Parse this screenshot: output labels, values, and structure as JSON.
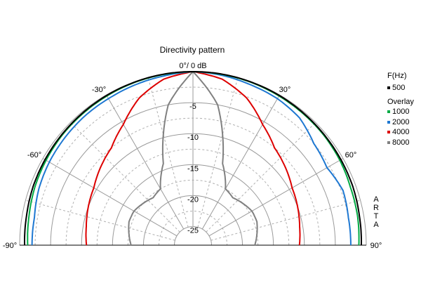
{
  "chart_data": {
    "type": "polar",
    "title": "Directivity pattern",
    "axis": {
      "radial_label_top": "0°/ 0 dB",
      "radial_ticks": [
        -5,
        -10,
        -15,
        -20,
        -25
      ],
      "radial_range_db": [
        -28,
        0
      ],
      "angle_labels": [
        "-90°",
        "-60°",
        "-30°",
        "30°",
        "60°",
        "90°"
      ],
      "angle_range_deg": [
        -90,
        90
      ],
      "angle_step_deg": 15,
      "grid": true
    },
    "legend": {
      "placement": "right",
      "header": "F(Hz)",
      "overlay_label": "Overlay",
      "items": [
        {
          "label": "500",
          "color": "#000000"
        },
        {
          "label": "1000",
          "color": "#00aa44"
        },
        {
          "label": "2000",
          "color": "#1e78d2"
        },
        {
          "label": "4000",
          "color": "#dd0000"
        },
        {
          "label": "8000",
          "color": "#808080"
        }
      ]
    },
    "watermark": "ARTA",
    "angles_deg": [
      -90,
      -80,
      -70,
      -60,
      -50,
      -40,
      -30,
      -20,
      -10,
      0,
      10,
      20,
      30,
      40,
      50,
      60,
      70,
      80,
      90
    ],
    "series": [
      {
        "name": "500",
        "color": "#000000",
        "values": [
          -0.8,
          -0.7,
          -0.5,
          -0.4,
          -0.3,
          -0.2,
          -0.1,
          -0.05,
          0,
          0,
          0,
          -0.05,
          -0.1,
          -0.2,
          -0.3,
          -0.4,
          -0.5,
          -0.7,
          -0.8
        ]
      },
      {
        "name": "1000",
        "color": "#00aa44",
        "values": [
          -1.3,
          -1.1,
          -0.8,
          -0.6,
          -0.4,
          -0.3,
          -0.2,
          -0.1,
          -0.05,
          0,
          -0.05,
          -0.1,
          -0.2,
          -0.3,
          -0.4,
          -0.6,
          -0.9,
          -1.0,
          -1.2
        ]
      },
      {
        "name": "2000",
        "color": "#1e78d2",
        "values": [
          -2.0,
          -2.0,
          -1.5,
          -1.2,
          -1.0,
          -0.8,
          -0.7,
          -0.5,
          -0.3,
          0,
          -0.2,
          -0.5,
          -0.7,
          -1.2,
          -2.5,
          -3.0,
          -2.2,
          -2.5,
          -2.5
        ]
      },
      {
        "name": "4000",
        "color": "#dd0000",
        "values": [
          -10.8,
          -10.5,
          -10.0,
          -9.5,
          -8.5,
          -7.5,
          -5.5,
          -2.7,
          -0.8,
          0,
          -0.8,
          -2.7,
          -5.5,
          -7.5,
          -8.5,
          -9.5,
          -10.0,
          -10.5,
          -10.8
        ]
      },
      {
        "name": "8000",
        "color": "#808080",
        "values": [
          -18.0,
          -17.5,
          -17.0,
          -17.0,
          -17.5,
          -18.0,
          -17.5,
          -14.0,
          -5.0,
          0,
          -5.0,
          -14.0,
          -17.5,
          -18.0,
          -17.5,
          -17.0,
          -17.0,
          -17.5,
          -18.0
        ]
      }
    ]
  }
}
